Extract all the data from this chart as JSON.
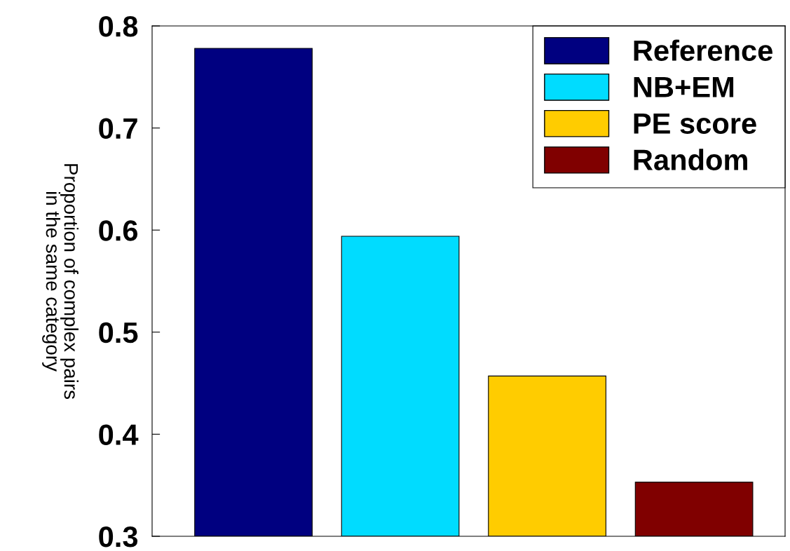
{
  "chart_data": {
    "type": "bar",
    "ylabel": "Proportion of complex pairs\nin the same category",
    "categories": [
      null,
      null,
      null,
      null
    ],
    "series": [
      {
        "name": "Reference",
        "color": "#000080",
        "values": [
          0.778,
          null,
          null,
          null
        ]
      },
      {
        "name": "NB+EM",
        "color": "#00dcff",
        "values": [
          null,
          0.594,
          null,
          null
        ]
      },
      {
        "name": "PE score",
        "color": "#ffcc00",
        "values": [
          null,
          null,
          0.457,
          null
        ]
      },
      {
        "name": "Random",
        "color": "#800000",
        "values": [
          null,
          null,
          null,
          0.353
        ]
      }
    ],
    "ylim": [
      0.3,
      0.8
    ],
    "yticks": [
      0.3,
      0.4,
      0.5,
      0.6,
      0.7,
      0.8
    ],
    "legend": "top right",
    "tick_labels": "y"
  }
}
